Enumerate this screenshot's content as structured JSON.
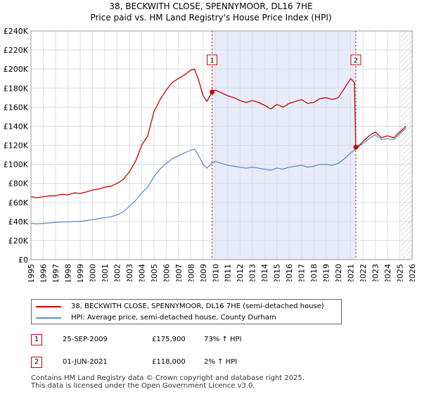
{
  "title_line1": "38, BECKWITH CLOSE, SPENNYMOOR, DL16 7HE",
  "title_line2": "Price paid vs. HM Land Registry's House Price Index (HPI)",
  "colors": {
    "price": "#cc0000",
    "hpi": "#5b8fcb",
    "shade": "#e6ecfa",
    "marker": "#cc0000",
    "grid": "#dddddd"
  },
  "chart_data": {
    "type": "line",
    "title": "38, BECKWITH CLOSE, SPENNYMOOR, DL16 7HE — Price paid vs. HM Land Registry's House Price Index (HPI)",
    "xlim": [
      1995,
      2026
    ],
    "ylim": [
      0,
      240000
    ],
    "x_ticks": [
      1995,
      1996,
      1997,
      1998,
      1999,
      2000,
      2001,
      2002,
      2003,
      2004,
      2005,
      2006,
      2007,
      2008,
      2009,
      2010,
      2011,
      2012,
      2013,
      2014,
      2015,
      2016,
      2017,
      2018,
      2019,
      2020,
      2021,
      2022,
      2023,
      2024,
      2025,
      2026
    ],
    "y_ticks": [
      {
        "value": 0,
        "label": "£0"
      },
      {
        "value": 20000,
        "label": "£20K"
      },
      {
        "value": 40000,
        "label": "£40K"
      },
      {
        "value": 60000,
        "label": "£60K"
      },
      {
        "value": 80000,
        "label": "£80K"
      },
      {
        "value": 100000,
        "label": "£100K"
      },
      {
        "value": 120000,
        "label": "£120K"
      },
      {
        "value": 140000,
        "label": "£140K"
      },
      {
        "value": 160000,
        "label": "£160K"
      },
      {
        "value": 180000,
        "label": "£180K"
      },
      {
        "value": 200000,
        "label": "£200K"
      },
      {
        "value": 220000,
        "label": "£220K"
      },
      {
        "value": 240000,
        "label": "£240K"
      }
    ],
    "shaded_period": [
      2009.73,
      2021.42
    ],
    "hatched_from": 2025.1,
    "series": [
      {
        "name": "38, BECKWITH CLOSE, SPENNYMOOR, DL16 7HE (semi-detached house)",
        "points": [
          [
            1995.0,
            66000
          ],
          [
            1995.5,
            65000
          ],
          [
            1996.0,
            66000
          ],
          [
            1996.5,
            67000
          ],
          [
            1997.0,
            67000
          ],
          [
            1997.5,
            68500
          ],
          [
            1998.0,
            68000
          ],
          [
            1998.5,
            70000
          ],
          [
            1999.0,
            69500
          ],
          [
            1999.5,
            71000
          ],
          [
            2000.0,
            73000
          ],
          [
            2000.5,
            74000
          ],
          [
            2001.0,
            76000
          ],
          [
            2001.5,
            77000
          ],
          [
            2002.0,
            80000
          ],
          [
            2002.5,
            84000
          ],
          [
            2003.0,
            92000
          ],
          [
            2003.5,
            103000
          ],
          [
            2004.0,
            120000
          ],
          [
            2004.5,
            130000
          ],
          [
            2005.0,
            155000
          ],
          [
            2005.5,
            168000
          ],
          [
            2006.0,
            178000
          ],
          [
            2006.5,
            186000
          ],
          [
            2007.0,
            190000
          ],
          [
            2007.5,
            194000
          ],
          [
            2008.0,
            199000
          ],
          [
            2008.3,
            200000
          ],
          [
            2008.6,
            190000
          ],
          [
            2009.0,
            172000
          ],
          [
            2009.3,
            166000
          ],
          [
            2009.73,
            175900
          ],
          [
            2010.0,
            178000
          ],
          [
            2010.5,
            175000
          ],
          [
            2011.0,
            172000
          ],
          [
            2011.5,
            170000
          ],
          [
            2012.0,
            167000
          ],
          [
            2012.5,
            165000
          ],
          [
            2013.0,
            167000
          ],
          [
            2013.5,
            165000
          ],
          [
            2014.0,
            162000
          ],
          [
            2014.5,
            158000
          ],
          [
            2015.0,
            163000
          ],
          [
            2015.5,
            160000
          ],
          [
            2016.0,
            164000
          ],
          [
            2016.5,
            166000
          ],
          [
            2017.0,
            168000
          ],
          [
            2017.5,
            164000
          ],
          [
            2018.0,
            165000
          ],
          [
            2018.5,
            169000
          ],
          [
            2019.0,
            170000
          ],
          [
            2019.5,
            168000
          ],
          [
            2020.0,
            170000
          ],
          [
            2020.5,
            180000
          ],
          [
            2021.0,
            190000
          ],
          [
            2021.3,
            186000
          ],
          [
            2021.42,
            118000
          ],
          [
            2021.7,
            120000
          ],
          [
            2022.0,
            124000
          ],
          [
            2022.5,
            130000
          ],
          [
            2023.0,
            134000
          ],
          [
            2023.5,
            128000
          ],
          [
            2024.0,
            130000
          ],
          [
            2024.5,
            128000
          ],
          [
            2025.0,
            134000
          ],
          [
            2025.5,
            140000
          ]
        ]
      },
      {
        "name": "HPI: Average price, semi-detached house, County Durham",
        "points": [
          [
            1995.0,
            38000
          ],
          [
            1995.5,
            37500
          ],
          [
            1996.0,
            38000
          ],
          [
            1996.5,
            38500
          ],
          [
            1997.0,
            39000
          ],
          [
            1997.5,
            39500
          ],
          [
            1998.0,
            39500
          ],
          [
            1998.5,
            40000
          ],
          [
            1999.0,
            40000
          ],
          [
            1999.5,
            41000
          ],
          [
            2000.0,
            42000
          ],
          [
            2000.5,
            43000
          ],
          [
            2001.0,
            44000
          ],
          [
            2001.5,
            45000
          ],
          [
            2002.0,
            47000
          ],
          [
            2002.5,
            50000
          ],
          [
            2003.0,
            56000
          ],
          [
            2003.5,
            62000
          ],
          [
            2004.0,
            70000
          ],
          [
            2004.5,
            76000
          ],
          [
            2005.0,
            87000
          ],
          [
            2005.5,
            95000
          ],
          [
            2006.0,
            101000
          ],
          [
            2006.5,
            106000
          ],
          [
            2007.0,
            109000
          ],
          [
            2007.5,
            112000
          ],
          [
            2008.0,
            115000
          ],
          [
            2008.3,
            116000
          ],
          [
            2008.6,
            110000
          ],
          [
            2009.0,
            100000
          ],
          [
            2009.3,
            96000
          ],
          [
            2009.73,
            101600
          ],
          [
            2010.0,
            103000
          ],
          [
            2010.5,
            101000
          ],
          [
            2011.0,
            99000
          ],
          [
            2011.5,
            98000
          ],
          [
            2012.0,
            97000
          ],
          [
            2012.5,
            96000
          ],
          [
            2013.0,
            97000
          ],
          [
            2013.5,
            96000
          ],
          [
            2014.0,
            95000
          ],
          [
            2014.5,
            94000
          ],
          [
            2015.0,
            96000
          ],
          [
            2015.5,
            95000
          ],
          [
            2016.0,
            97000
          ],
          [
            2016.5,
            98000
          ],
          [
            2017.0,
            99000
          ],
          [
            2017.5,
            97000
          ],
          [
            2018.0,
            98000
          ],
          [
            2018.5,
            100000
          ],
          [
            2019.0,
            100000
          ],
          [
            2019.5,
            99000
          ],
          [
            2020.0,
            101000
          ],
          [
            2020.5,
            106000
          ],
          [
            2021.0,
            112000
          ],
          [
            2021.42,
            115700
          ],
          [
            2021.7,
            119000
          ],
          [
            2022.0,
            122000
          ],
          [
            2022.5,
            127000
          ],
          [
            2023.0,
            131000
          ],
          [
            2023.5,
            126000
          ],
          [
            2024.0,
            127000
          ],
          [
            2024.5,
            126000
          ],
          [
            2025.0,
            132000
          ],
          [
            2025.5,
            138000
          ]
        ]
      }
    ],
    "annotations": [
      {
        "label": "1",
        "x": 2009.73,
        "y": 175900
      },
      {
        "label": "2",
        "x": 2021.42,
        "y": 118000
      }
    ]
  },
  "legend": {
    "price_label": "38, BECKWITH CLOSE, SPENNYMOOR, DL16 7HE (semi-detached house)",
    "hpi_label": "HPI: Average price, semi-detached house, County Durham"
  },
  "sales": [
    {
      "marker": "1",
      "date": "25-SEP-2009",
      "price": "£175,900",
      "hpi": "73% ↑ HPI"
    },
    {
      "marker": "2",
      "date": "01-JUN-2021",
      "price": "£118,000",
      "hpi": "2% ↑ HPI"
    }
  ],
  "footer_line1": "Contains HM Land Registry data © Crown copyright and database right 2025.",
  "footer_line2": "This data is licensed under the Open Government Licence v3.0."
}
